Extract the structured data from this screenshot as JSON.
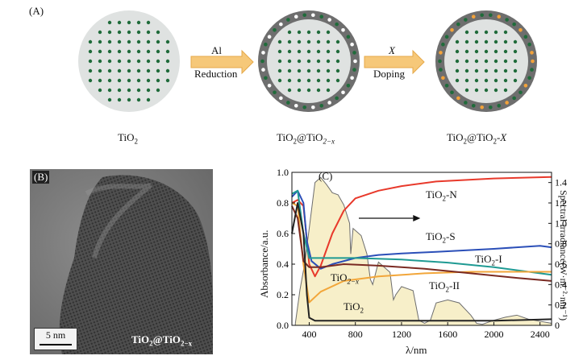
{
  "panel_a": {
    "label": "(A)",
    "step1": {
      "reagent": "Al",
      "action": "Reduction"
    },
    "step2": {
      "reagent": "X",
      "action": "Doping"
    },
    "particles": [
      {
        "name": "TiO",
        "sub": "2",
        "tail": ""
      },
      {
        "name": "TiO",
        "sub": "2",
        "mid": "@TiO",
        "sub2": "2−x",
        "tail": ""
      },
      {
        "name": "TiO",
        "sub": "2",
        "mid": "@TiO",
        "sub2": "2",
        "tail": "-X"
      }
    ],
    "colors": {
      "lattice_dot": "#1f6b3a",
      "vacancy": "#ffffff",
      "dopant": "#f2a23a",
      "shell": "#6e6e6e",
      "core": "#dfe2e1",
      "arrow": "#f6c879"
    }
  },
  "panel_b": {
    "label": "(B)",
    "scale_bar": "5 nm",
    "caption_main": "TiO",
    "caption_sub": "2",
    "caption_mid": "@TiO",
    "caption_sub2": "2−x"
  },
  "chart_data": {
    "type": "line",
    "panel_label": "(C)",
    "xlabel": "λ/nm",
    "ylabel_left": "Absorbance/a.u.",
    "ylabel_right": "Spectral irradiance(W·m⁻²·nm⁻¹)",
    "xlim": [
      250,
      2500
    ],
    "ylim_left": [
      0,
      1.0
    ],
    "ylim_right": [
      0,
      1.5
    ],
    "x_ticks": [
      400,
      800,
      1200,
      1600,
      2000,
      2400
    ],
    "y_ticks_left": [
      0.0,
      0.2,
      0.4,
      0.6,
      0.8,
      1.0
    ],
    "y_ticks_right": [
      0,
      0.2,
      0.4,
      0.6,
      0.8,
      1.0,
      1.2,
      1.4
    ],
    "series": [
      {
        "name": "TiO2-N",
        "color": "#e8392b",
        "x": [
          250,
          300,
          350,
          400,
          450,
          500,
          600,
          700,
          800,
          1000,
          1200,
          1500,
          2000,
          2500
        ],
        "y": [
          0.8,
          0.82,
          0.78,
          0.4,
          0.32,
          0.39,
          0.6,
          0.75,
          0.83,
          0.88,
          0.91,
          0.94,
          0.96,
          0.97
        ]
      },
      {
        "name": "TiO2-S",
        "color": "#2b4fb8",
        "x": [
          250,
          300,
          350,
          380,
          420,
          500,
          600,
          800,
          1000,
          1200,
          1500,
          2000,
          2400,
          2500
        ],
        "y": [
          0.84,
          0.88,
          0.8,
          0.55,
          0.42,
          0.37,
          0.4,
          0.44,
          0.46,
          0.47,
          0.48,
          0.5,
          0.52,
          0.51
        ]
      },
      {
        "name": "TiO2-I",
        "color": "#1f9a93",
        "x": [
          250,
          300,
          350,
          400,
          500,
          800,
          1200,
          1600,
          2000,
          2400,
          2500
        ],
        "y": [
          0.86,
          0.88,
          0.6,
          0.44,
          0.44,
          0.44,
          0.43,
          0.41,
          0.38,
          0.34,
          0.33
        ]
      },
      {
        "name": "TiO2-II",
        "color": "#f2a63a",
        "x": [
          250,
          300,
          350,
          400,
          500,
          700,
          1000,
          1400,
          1800,
          2200,
          2500
        ],
        "y": [
          0.8,
          0.78,
          0.4,
          0.15,
          0.22,
          0.29,
          0.32,
          0.34,
          0.35,
          0.35,
          0.35
        ]
      },
      {
        "name": "TiO2-x",
        "color": "#7a2a22",
        "x": [
          250,
          300,
          350,
          400,
          500,
          700,
          1000,
          1400,
          1800,
          2200,
          2500
        ],
        "y": [
          0.78,
          0.7,
          0.42,
          0.38,
          0.38,
          0.4,
          0.39,
          0.37,
          0.34,
          0.31,
          0.29
        ]
      },
      {
        "name": "TiO2",
        "color": "#222222",
        "x": [
          250,
          300,
          350,
          380,
          400,
          450,
          600,
          1000,
          1500,
          2000,
          2500
        ],
        "y": [
          0.6,
          0.8,
          0.6,
          0.2,
          0.05,
          0.03,
          0.03,
          0.03,
          0.03,
          0.03,
          0.04
        ]
      }
    ],
    "irradiance": {
      "color": "#6d6d6d",
      "fill": "#f7efc9",
      "x": [
        280,
        320,
        360,
        400,
        450,
        500,
        550,
        600,
        650,
        700,
        750,
        760,
        780,
        850,
        900,
        930,
        950,
        1000,
        1100,
        1130,
        1150,
        1200,
        1300,
        1350,
        1400,
        1450,
        1500,
        1600,
        1700,
        1800,
        1850,
        1900,
        2000,
        2100,
        2200,
        2300,
        2400,
        2500
      ],
      "y": [
        0.02,
        0.35,
        0.6,
        0.95,
        1.4,
        1.45,
        1.38,
        1.3,
        1.28,
        1.18,
        1.0,
        0.7,
        0.95,
        0.88,
        0.7,
        0.45,
        0.4,
        0.62,
        0.52,
        0.25,
        0.3,
        0.38,
        0.34,
        0.05,
        0.02,
        0.05,
        0.22,
        0.25,
        0.22,
        0.1,
        0.02,
        0.01,
        0.05,
        0.08,
        0.1,
        0.06,
        0.04,
        0.02
      ]
    },
    "labels": [
      {
        "main": "TiO",
        "sub": "2",
        "tail": "-N",
        "series": "TiO2-N"
      },
      {
        "main": "TiO",
        "sub": "2",
        "tail": "-S",
        "series": "TiO2-S"
      },
      {
        "main": "TiO",
        "sub": "2",
        "tail": "-I",
        "series": "TiO2-I"
      },
      {
        "main": "TiO",
        "sub": "2",
        "tail": "-II",
        "series": "TiO2-II"
      },
      {
        "main": "TiO",
        "sub": "2−x",
        "tail": "",
        "series": "TiO2-x"
      },
      {
        "main": "TiO",
        "sub": "2",
        "tail": "",
        "series": "TiO2"
      }
    ]
  }
}
